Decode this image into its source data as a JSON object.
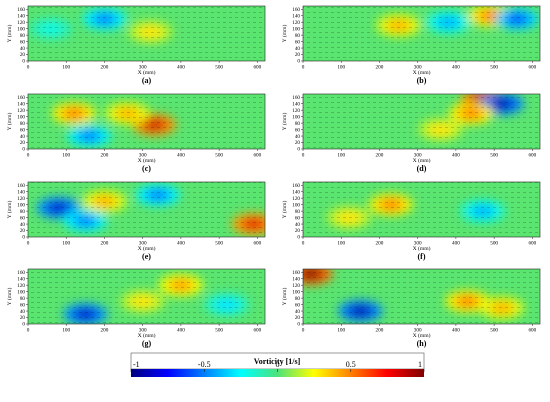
{
  "chart_data": [
    {
      "type": "heatmap",
      "panel_label": "(a)",
      "xlabel": "X (mm)",
      "ylabel": "Y (mm)",
      "xlim": [
        0,
        620
      ],
      "ylim": [
        0,
        170
      ],
      "xticks": [
        0,
        100,
        200,
        300,
        400,
        500,
        600
      ],
      "yticks": [
        0,
        20,
        40,
        60,
        80,
        100,
        120,
        140,
        160
      ],
      "hot_spots": [
        {
          "x": 200,
          "y": 130,
          "v": -0.5
        },
        {
          "x": 320,
          "y": 90,
          "v": 0.3
        },
        {
          "x": 60,
          "y": 100,
          "v": -0.2
        }
      ]
    },
    {
      "type": "heatmap",
      "panel_label": "(b)",
      "xlabel": "X (mm)",
      "ylabel": "Y (mm)",
      "xlim": [
        0,
        620
      ],
      "ylim": [
        0,
        170
      ],
      "xticks": [
        0,
        100,
        200,
        300,
        400,
        500,
        600
      ],
      "yticks": [
        0,
        20,
        40,
        60,
        80,
        100,
        120,
        140,
        160
      ],
      "hot_spots": [
        {
          "x": 490,
          "y": 140,
          "v": 0.5
        },
        {
          "x": 560,
          "y": 130,
          "v": -0.6
        },
        {
          "x": 250,
          "y": 110,
          "v": 0.4
        },
        {
          "x": 380,
          "y": 120,
          "v": -0.4
        }
      ]
    },
    {
      "type": "heatmap",
      "panel_label": "(c)",
      "xlabel": "X (mm)",
      "ylabel": "Y (mm)",
      "xlim": [
        0,
        620
      ],
      "ylim": [
        0,
        170
      ],
      "xticks": [
        0,
        100,
        200,
        300,
        400,
        500,
        600
      ],
      "yticks": [
        0,
        20,
        40,
        60,
        80,
        100,
        120,
        140,
        160
      ],
      "hot_spots": [
        {
          "x": 330,
          "y": 75,
          "v": 0.85
        },
        {
          "x": 120,
          "y": 110,
          "v": 0.5
        },
        {
          "x": 160,
          "y": 40,
          "v": -0.5
        },
        {
          "x": 260,
          "y": 110,
          "v": 0.4
        }
      ]
    },
    {
      "type": "heatmap",
      "panel_label": "(d)",
      "xlabel": "X (mm)",
      "ylabel": "Y (mm)",
      "xlim": [
        0,
        620
      ],
      "ylim": [
        0,
        170
      ],
      "xticks": [
        0,
        100,
        200,
        300,
        400,
        500,
        600
      ],
      "yticks": [
        0,
        20,
        40,
        60,
        80,
        100,
        120,
        140,
        160
      ],
      "hot_spots": [
        {
          "x": 470,
          "y": 150,
          "v": 0.95
        },
        {
          "x": 520,
          "y": 140,
          "v": -0.9
        },
        {
          "x": 440,
          "y": 110,
          "v": 0.5
        },
        {
          "x": 360,
          "y": 60,
          "v": 0.3
        }
      ]
    },
    {
      "type": "heatmap",
      "panel_label": "(e)",
      "xlabel": "X (mm)",
      "ylabel": "Y (mm)",
      "xlim": [
        0,
        620
      ],
      "ylim": [
        0,
        170
      ],
      "xticks": [
        0,
        100,
        200,
        300,
        400,
        500,
        600
      ],
      "yticks": [
        0,
        20,
        40,
        60,
        80,
        100,
        120,
        140,
        160
      ],
      "hot_spots": [
        {
          "x": 80,
          "y": 90,
          "v": -0.85
        },
        {
          "x": 150,
          "y": 50,
          "v": -0.5
        },
        {
          "x": 590,
          "y": 40,
          "v": 0.8
        },
        {
          "x": 200,
          "y": 110,
          "v": 0.4
        },
        {
          "x": 340,
          "y": 130,
          "v": -0.5
        }
      ]
    },
    {
      "type": "heatmap",
      "panel_label": "(f)",
      "xlabel": "X (mm)",
      "ylabel": "Y (mm)",
      "xlim": [
        0,
        620
      ],
      "ylim": [
        0,
        170
      ],
      "xticks": [
        0,
        100,
        200,
        300,
        400,
        500,
        600
      ],
      "yticks": [
        0,
        20,
        40,
        60,
        80,
        100,
        120,
        140,
        160
      ],
      "hot_spots": [
        {
          "x": 230,
          "y": 100,
          "v": 0.5
        },
        {
          "x": 470,
          "y": 80,
          "v": -0.4
        },
        {
          "x": 120,
          "y": 60,
          "v": 0.3
        }
      ]
    },
    {
      "type": "heatmap",
      "panel_label": "(g)",
      "xlabel": "X (mm)",
      "ylabel": "Y (mm)",
      "xlim": [
        0,
        620
      ],
      "ylim": [
        0,
        170
      ],
      "xticks": [
        0,
        100,
        200,
        300,
        400,
        500,
        600
      ],
      "yticks": [
        0,
        20,
        40,
        60,
        80,
        100,
        120,
        140,
        160
      ],
      "hot_spots": [
        {
          "x": 150,
          "y": 30,
          "v": -0.85
        },
        {
          "x": 400,
          "y": 120,
          "v": 0.45
        },
        {
          "x": 300,
          "y": 70,
          "v": 0.3
        },
        {
          "x": 520,
          "y": 60,
          "v": -0.3
        }
      ]
    },
    {
      "type": "heatmap",
      "panel_label": "(h)",
      "xlabel": "X (mm)",
      "ylabel": "Y (mm)",
      "xlim": [
        0,
        620
      ],
      "ylim": [
        0,
        170
      ],
      "xticks": [
        0,
        100,
        200,
        300,
        400,
        500,
        600
      ],
      "yticks": [
        0,
        20,
        40,
        60,
        80,
        100,
        120,
        140,
        160
      ],
      "hot_spots": [
        {
          "x": 20,
          "y": 155,
          "v": 1.0
        },
        {
          "x": 150,
          "y": 40,
          "v": -0.9
        },
        {
          "x": 430,
          "y": 70,
          "v": 0.5
        },
        {
          "x": 520,
          "y": 50,
          "v": 0.4
        }
      ]
    },
    {
      "type": "colorbar",
      "title": "Vorticity [1/s]",
      "range": [
        -1,
        1
      ],
      "ticks": [
        "-1",
        "-0.5",
        "0",
        "0.5",
        "1"
      ]
    }
  ]
}
